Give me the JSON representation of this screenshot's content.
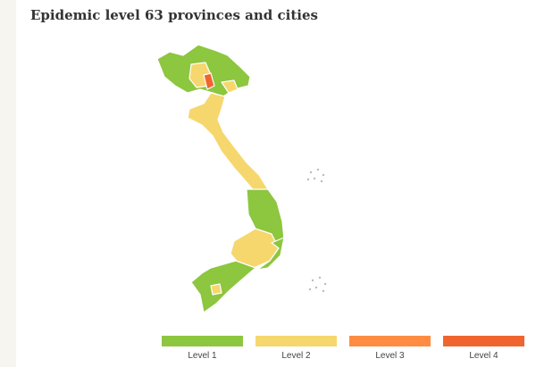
{
  "header": {
    "title": "Epidemic level 63 provinces and cities"
  },
  "legend": {
    "items": [
      {
        "label": "Level 1",
        "color": "#8dc63f"
      },
      {
        "label": "Level 2",
        "color": "#f5d76e"
      },
      {
        "label": "Level 3",
        "color": "#ff8c42"
      },
      {
        "label": "Level 4",
        "color": "#f0652f"
      }
    ]
  }
}
